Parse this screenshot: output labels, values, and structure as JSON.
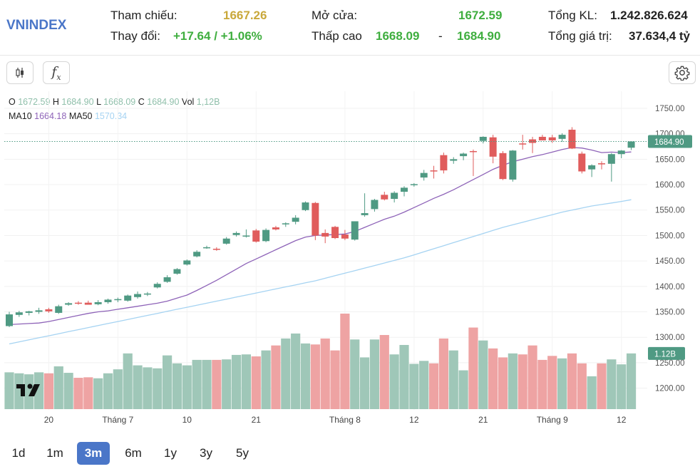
{
  "header": {
    "symbol": "VNINDEX",
    "ref_label": "Tham chiếu:",
    "ref_value": "1667.26",
    "change_label": "Thay đổi:",
    "change_value": "+17.64 / +1.06%",
    "open_label": "Mở cửa:",
    "open_value": "1672.59",
    "range_label": "Thấp cao",
    "low_value": "1668.09",
    "range_sep": "-",
    "high_value": "1684.90",
    "vol_label": "Tổng KL:",
    "vol_value": "1.242.826.624",
    "value_label": "Tổng giá trị:",
    "value_value": "37.634,4 tỷ"
  },
  "toolbar": {
    "candle_icon": "candlestick-icon",
    "fx_icon": "fx-icon",
    "fx_text": "f",
    "fx_sub": "x",
    "settings_icon": "gear-icon"
  },
  "legend": {
    "o_label": "O",
    "o_value": "1672.59",
    "h_label": "H",
    "h_value": "1684.90",
    "l_label": "L",
    "l_value": "1668.09",
    "c_label": "C",
    "c_value": "1684.90",
    "vol_label": "Vol",
    "vol_value": "1,12B",
    "ma10_label": "MA10",
    "ma10_value": "1664.18",
    "ma50_label": "MA50",
    "ma50_value": "1570.34"
  },
  "periods": [
    {
      "label": "1d",
      "active": false
    },
    {
      "label": "1m",
      "active": false
    },
    {
      "label": "3m",
      "active": true
    },
    {
      "label": "6m",
      "active": false
    },
    {
      "label": "1y",
      "active": false
    },
    {
      "label": "3y",
      "active": false
    },
    {
      "label": "5y",
      "active": false
    }
  ],
  "colors": {
    "up": "#4f9a83",
    "down": "#e05c5c",
    "vol_up": "#9fc7b8",
    "vol_down": "#eea3a3",
    "ma10": "#8e63b8",
    "ma50": "#a5d3f2",
    "accent": "#4a76c8"
  },
  "chart_data": {
    "type": "candlestick",
    "y_ticks": [
      "1750.00",
      "1700.00",
      "1650.00",
      "1600.00",
      "1550.00",
      "1500.00",
      "1450.00",
      "1400.00",
      "1350.00",
      "1300.00",
      "1250.00",
      "1200.00"
    ],
    "ylim": [
      1177,
      1778
    ],
    "x_ticks": [
      {
        "label": "20",
        "index": 4
      },
      {
        "label": "Tháng 7",
        "index": 11
      },
      {
        "label": "10",
        "index": 18
      },
      {
        "label": "21",
        "index": 25
      },
      {
        "label": "Tháng 8",
        "index": 34
      },
      {
        "label": "12",
        "index": 41
      },
      {
        "label": "21",
        "index": 48
      },
      {
        "label": "Tháng 9",
        "index": 55
      },
      {
        "label": "12",
        "index": 62
      }
    ],
    "last_price_label": "1684.90",
    "last_price": 1684.9,
    "last_volume_label": "1.12B",
    "candles": [
      {
        "o": 1322,
        "h": 1350,
        "l": 1320,
        "c": 1345
      },
      {
        "o": 1344,
        "h": 1352,
        "l": 1340,
        "c": 1349
      },
      {
        "o": 1348,
        "h": 1352,
        "l": 1343,
        "c": 1351
      },
      {
        "o": 1350,
        "h": 1358,
        "l": 1346,
        "c": 1353
      },
      {
        "o": 1355,
        "h": 1358,
        "l": 1348,
        "c": 1351
      },
      {
        "o": 1348,
        "h": 1364,
        "l": 1346,
        "c": 1361
      },
      {
        "o": 1364,
        "h": 1369,
        "l": 1362,
        "c": 1367
      },
      {
        "o": 1368,
        "h": 1371,
        "l": 1364,
        "c": 1366
      },
      {
        "o": 1368,
        "h": 1372,
        "l": 1365,
        "c": 1364
      },
      {
        "o": 1365,
        "h": 1373,
        "l": 1363,
        "c": 1369
      },
      {
        "o": 1369,
        "h": 1376,
        "l": 1366,
        "c": 1374
      },
      {
        "o": 1374,
        "h": 1378,
        "l": 1369,
        "c": 1375
      },
      {
        "o": 1372,
        "h": 1384,
        "l": 1370,
        "c": 1382
      },
      {
        "o": 1379,
        "h": 1390,
        "l": 1376,
        "c": 1385
      },
      {
        "o": 1384,
        "h": 1389,
        "l": 1381,
        "c": 1386
      },
      {
        "o": 1398,
        "h": 1408,
        "l": 1396,
        "c": 1405
      },
      {
        "o": 1409,
        "h": 1422,
        "l": 1407,
        "c": 1418
      },
      {
        "o": 1425,
        "h": 1436,
        "l": 1423,
        "c": 1434
      },
      {
        "o": 1443,
        "h": 1453,
        "l": 1441,
        "c": 1451
      },
      {
        "o": 1459,
        "h": 1471,
        "l": 1457,
        "c": 1468
      },
      {
        "o": 1476,
        "h": 1480,
        "l": 1474,
        "c": 1477
      },
      {
        "o": 1474,
        "h": 1477,
        "l": 1470,
        "c": 1473
      },
      {
        "o": 1484,
        "h": 1497,
        "l": 1482,
        "c": 1494
      },
      {
        "o": 1501,
        "h": 1508,
        "l": 1498,
        "c": 1505
      },
      {
        "o": 1498,
        "h": 1512,
        "l": 1496,
        "c": 1500
      },
      {
        "o": 1510,
        "h": 1513,
        "l": 1486,
        "c": 1488
      },
      {
        "o": 1489,
        "h": 1514,
        "l": 1487,
        "c": 1511
      },
      {
        "o": 1516,
        "h": 1519,
        "l": 1510,
        "c": 1512
      },
      {
        "o": 1522,
        "h": 1526,
        "l": 1517,
        "c": 1524
      },
      {
        "o": 1527,
        "h": 1540,
        "l": 1522,
        "c": 1535
      },
      {
        "o": 1550,
        "h": 1567,
        "l": 1548,
        "c": 1565
      },
      {
        "o": 1564,
        "h": 1566,
        "l": 1491,
        "c": 1500
      },
      {
        "o": 1505,
        "h": 1512,
        "l": 1485,
        "c": 1498
      },
      {
        "o": 1517,
        "h": 1519,
        "l": 1493,
        "c": 1495
      },
      {
        "o": 1502,
        "h": 1511,
        "l": 1491,
        "c": 1494
      },
      {
        "o": 1492,
        "h": 1525,
        "l": 1490,
        "c": 1528
      },
      {
        "o": 1540,
        "h": 1583,
        "l": 1537,
        "c": 1544
      },
      {
        "o": 1552,
        "h": 1572,
        "l": 1547,
        "c": 1570
      },
      {
        "o": 1580,
        "h": 1586,
        "l": 1569,
        "c": 1571
      },
      {
        "o": 1572,
        "h": 1587,
        "l": 1565,
        "c": 1584
      },
      {
        "o": 1586,
        "h": 1597,
        "l": 1577,
        "c": 1594
      },
      {
        "o": 1599,
        "h": 1603,
        "l": 1596,
        "c": 1601
      },
      {
        "o": 1614,
        "h": 1629,
        "l": 1608,
        "c": 1623
      },
      {
        "o": 1628,
        "h": 1637,
        "l": 1612,
        "c": 1627
      },
      {
        "o": 1658,
        "h": 1663,
        "l": 1622,
        "c": 1628
      },
      {
        "o": 1647,
        "h": 1654,
        "l": 1641,
        "c": 1650
      },
      {
        "o": 1656,
        "h": 1663,
        "l": 1648,
        "c": 1661
      },
      {
        "o": 1666,
        "h": 1669,
        "l": 1617,
        "c": 1664
      },
      {
        "o": 1686,
        "h": 1695,
        "l": 1681,
        "c": 1694
      },
      {
        "o": 1693,
        "h": 1698,
        "l": 1642,
        "c": 1655
      },
      {
        "o": 1662,
        "h": 1666,
        "l": 1609,
        "c": 1611
      },
      {
        "o": 1610,
        "h": 1668,
        "l": 1606,
        "c": 1667
      },
      {
        "o": 1681,
        "h": 1698,
        "l": 1669,
        "c": 1679
      },
      {
        "o": 1689,
        "h": 1694,
        "l": 1662,
        "c": 1682
      },
      {
        "o": 1694,
        "h": 1698,
        "l": 1688,
        "c": 1687
      },
      {
        "o": 1693,
        "h": 1698,
        "l": 1682,
        "c": 1687
      },
      {
        "o": 1690,
        "h": 1701,
        "l": 1684,
        "c": 1698
      },
      {
        "o": 1708,
        "h": 1713,
        "l": 1670,
        "c": 1671
      },
      {
        "o": 1661,
        "h": 1665,
        "l": 1622,
        "c": 1626
      },
      {
        "o": 1630,
        "h": 1640,
        "l": 1615,
        "c": 1638
      },
      {
        "o": 1642,
        "h": 1646,
        "l": 1630,
        "c": 1640
      },
      {
        "o": 1641,
        "h": 1662,
        "l": 1606,
        "c": 1660
      },
      {
        "o": 1660,
        "h": 1668,
        "l": 1652,
        "c": 1667
      },
      {
        "o": 1672.59,
        "h": 1684.9,
        "l": 1668.09,
        "c": 1684.9
      }
    ],
    "volume_ylim": [
      0,
      1.92
    ],
    "volumes": [
      0.74,
      0.72,
      0.7,
      0.74,
      0.72,
      0.86,
      0.73,
      0.63,
      0.64,
      0.62,
      0.72,
      0.8,
      1.12,
      0.88,
      0.84,
      0.82,
      1.08,
      0.92,
      0.88,
      0.99,
      0.99,
      0.99,
      1.0,
      1.09,
      1.1,
      1.06,
      1.18,
      1.28,
      1.42,
      1.52,
      1.32,
      1.3,
      1.42,
      1.18,
      1.92,
      1.4,
      1.04,
      1.4,
      1.49,
      1.1,
      1.29,
      0.91,
      0.97,
      0.92,
      1.42,
      1.18,
      0.78,
      1.64,
      1.38,
      1.22,
      1.04,
      1.12,
      1.1,
      1.28,
      0.99,
      1.07,
      1.02,
      1.12,
      0.92,
      0.66,
      0.92,
      1.0,
      0.9,
      1.12
    ],
    "ma10": [
      1325,
      1326,
      1327,
      1328,
      1331,
      1335,
      1339,
      1343,
      1347,
      1350,
      1352,
      1355,
      1358,
      1361,
      1364,
      1367,
      1371,
      1377,
      1383,
      1392,
      1402,
      1412,
      1423,
      1434,
      1445,
      1454,
      1463,
      1472,
      1481,
      1490,
      1497,
      1500,
      1501,
      1502,
      1503,
      1508,
      1516,
      1524,
      1532,
      1538,
      1546,
      1555,
      1564,
      1573,
      1581,
      1590,
      1600,
      1610,
      1620,
      1630,
      1638,
      1645,
      1650,
      1655,
      1659,
      1664,
      1669,
      1673,
      1672,
      1668,
      1663,
      1664,
      1663,
      1664.18
    ],
    "ma50": [
      1287,
      1291,
      1295,
      1299,
      1303,
      1307,
      1311,
      1315,
      1319,
      1323,
      1327,
      1331,
      1335,
      1339,
      1343,
      1347,
      1351,
      1355,
      1359,
      1363,
      1367,
      1371,
      1375,
      1379,
      1383,
      1387,
      1391,
      1395,
      1399,
      1403,
      1407,
      1411,
      1416,
      1421,
      1426,
      1431,
      1436,
      1441,
      1446,
      1451,
      1456,
      1462,
      1468,
      1474,
      1480,
      1486,
      1492,
      1498,
      1504,
      1510,
      1516,
      1521,
      1526,
      1531,
      1536,
      1541,
      1546,
      1550,
      1554,
      1558,
      1561,
      1564,
      1567,
      1570.34
    ]
  }
}
